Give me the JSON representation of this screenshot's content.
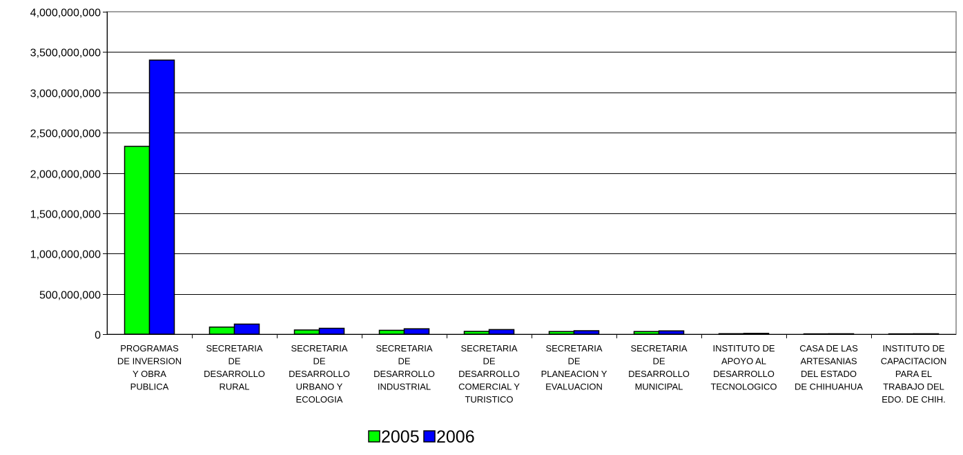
{
  "chart_data": {
    "type": "bar",
    "title": "",
    "xlabel": "",
    "ylabel": "",
    "ylim": [
      0,
      4000000000
    ],
    "yticks": [
      0,
      500000000,
      1000000000,
      1500000000,
      2000000000,
      2500000000,
      3000000000,
      3500000000,
      4000000000
    ],
    "ytick_labels": [
      "0",
      "500,000,000",
      "1,000,000,000",
      "1,500,000,000",
      "2,000,000,000",
      "2,500,000,000",
      "3,000,000,000",
      "3,500,000,000",
      "4,000,000,000"
    ],
    "grid": true,
    "legend_position": "bottom",
    "categories": [
      [
        "PROGRAMAS",
        "DE INVERSION",
        "Y OBRA",
        "PUBLICA"
      ],
      [
        "SECRETARIA",
        "DE",
        "DESARROLLO",
        "RURAL"
      ],
      [
        "SECRETARIA",
        "DE",
        "DESARROLLO",
        "URBANO Y",
        "ECOLOGIA"
      ],
      [
        "SECRETARIA",
        "DE",
        "DESARROLLO",
        "INDUSTRIAL"
      ],
      [
        "SECRETARIA",
        "DE",
        "DESARROLLO",
        "COMERCIAL Y",
        "TURISTICO"
      ],
      [
        "SECRETARIA",
        "DE",
        "PLANEACION Y",
        "EVALUACION"
      ],
      [
        "SECRETARIA",
        "DE",
        "DESARROLLO",
        "MUNICIPAL"
      ],
      [
        "INSTITUTO DE",
        "APOYO AL",
        "DESARROLLO",
        "TECNOLOGICO"
      ],
      [
        "CASA DE LAS",
        "ARTESANIAS",
        "DEL ESTADO",
        "DE CHIHUAHUA"
      ],
      [
        "INSTITUTO DE",
        "CAPACITACION",
        "PARA EL",
        "TRABAJO DEL",
        "EDO. DE CHIH."
      ]
    ],
    "series": [
      {
        "name": "2005",
        "color": "#00ff00",
        "values": [
          2330000000,
          88000000,
          52000000,
          48000000,
          35000000,
          33000000,
          33000000,
          6000000,
          4000000,
          4000000
        ]
      },
      {
        "name": "2006",
        "color": "#0000ff",
        "values": [
          3400000000,
          125000000,
          73000000,
          67000000,
          57000000,
          43000000,
          41000000,
          10000000,
          5000000,
          5000000
        ]
      }
    ]
  }
}
